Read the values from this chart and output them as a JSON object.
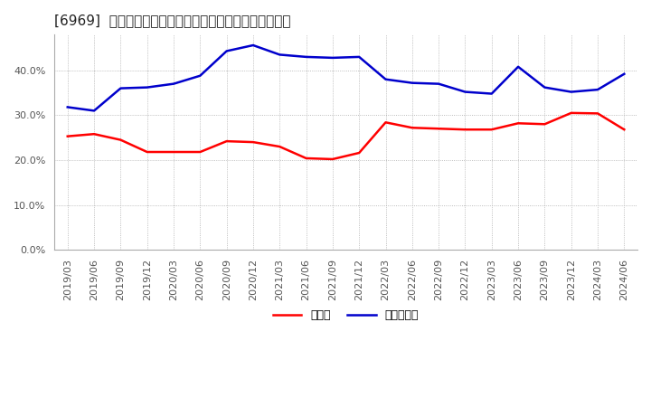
{
  "title": "[6969]  現預金、有利子負債の総資産に対する比率の推移",
  "legend_labels": [
    "現預金",
    "有利子負債"
  ],
  "line_colors": [
    "#ff0000",
    "#0000cc"
  ],
  "x_labels": [
    "2019/03",
    "2019/06",
    "2019/09",
    "2019/12",
    "2020/03",
    "2020/06",
    "2020/09",
    "2020/12",
    "2021/03",
    "2021/06",
    "2021/09",
    "2021/12",
    "2022/03",
    "2022/06",
    "2022/09",
    "2022/12",
    "2023/03",
    "2023/06",
    "2023/09",
    "2023/12",
    "2024/03",
    "2024/06"
  ],
  "cash": [
    0.253,
    0.258,
    0.245,
    0.218,
    0.218,
    0.218,
    0.242,
    0.24,
    0.23,
    0.204,
    0.202,
    0.216,
    0.284,
    0.272,
    0.27,
    0.268,
    0.268,
    0.282,
    0.28,
    0.305,
    0.304,
    0.268
  ],
  "debt": [
    0.318,
    0.31,
    0.36,
    0.362,
    0.37,
    0.388,
    0.443,
    0.456,
    0.435,
    0.43,
    0.428,
    0.43,
    0.38,
    0.372,
    0.37,
    0.352,
    0.348,
    0.408,
    0.362,
    0.352,
    0.357,
    0.392
  ],
  "ylim": [
    0.0,
    0.48
  ],
  "yticks": [
    0.0,
    0.1,
    0.2,
    0.3,
    0.4
  ],
  "background_color": "#ffffff",
  "plot_bg_color": "#ffffff",
  "grid_color": "#aaaaaa",
  "title_fontsize": 11,
  "tick_fontsize": 8,
  "legend_fontsize": 9,
  "linewidth": 1.8
}
